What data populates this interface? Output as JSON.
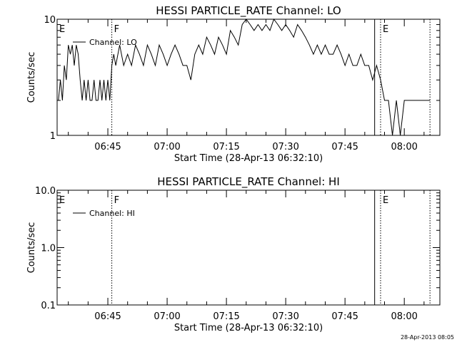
{
  "footer_timestamp": "28-Apr-2013 08:05",
  "chart_data": [
    {
      "type": "line",
      "title": "HESSI PARTICLE_RATE Channel: LO",
      "xlabel": "Start Time (28-Apr-13 06:32:10)",
      "ylabel": "Counts/sec",
      "yscale": "log",
      "ylim": [
        1,
        10
      ],
      "y_ticks": [
        {
          "v": 1,
          "label": "1"
        },
        {
          "v": 10,
          "label": "10"
        }
      ],
      "xlim": [
        "06:32:10",
        "08:09:00"
      ],
      "x_ticks": [
        "06:45",
        "07:00",
        "07:15",
        "07:30",
        "07:45",
        "08:00"
      ],
      "legend": "Channel: LO",
      "legend_position": "top-left",
      "event_markers": [
        {
          "time": "06:32:10",
          "label": "E",
          "style": "solid"
        },
        {
          "time": "06:46:00",
          "label": "F",
          "style": "dotted"
        },
        {
          "time": "07:52:30",
          "label": "",
          "style": "solid"
        },
        {
          "time": "07:54:00",
          "label": "E",
          "style": "dotted"
        },
        {
          "time": "08:06:30",
          "label": "",
          "style": "dotted"
        }
      ],
      "series": [
        {
          "name": "Channel: LO",
          "x": [
            "06:32:30",
            "06:33:00",
            "06:33:30",
            "06:34:00",
            "06:34:30",
            "06:35:00",
            "06:35:30",
            "06:36:00",
            "06:36:30",
            "06:37:00",
            "06:37:30",
            "06:38:00",
            "06:38:30",
            "06:39:00",
            "06:39:30",
            "06:40:00",
            "06:40:30",
            "06:41:00",
            "06:41:30",
            "06:42:00",
            "06:42:30",
            "06:43:00",
            "06:43:30",
            "06:44:00",
            "06:44:30",
            "06:45:00",
            "06:45:30",
            "06:46:00",
            "06:46:30",
            "06:47:00",
            "06:48:00",
            "06:49:00",
            "06:50:00",
            "06:51:00",
            "06:52:00",
            "06:53:00",
            "06:54:00",
            "06:55:00",
            "06:56:00",
            "06:57:00",
            "06:58:00",
            "06:59:00",
            "07:00:00",
            "07:01:00",
            "07:02:00",
            "07:03:00",
            "07:04:00",
            "07:05:00",
            "07:06:00",
            "07:07:00",
            "07:08:00",
            "07:09:00",
            "07:10:00",
            "07:11:00",
            "07:12:00",
            "07:13:00",
            "07:14:00",
            "07:15:00",
            "07:16:00",
            "07:17:00",
            "07:18:00",
            "07:19:00",
            "07:20:00",
            "07:21:00",
            "07:22:00",
            "07:23:00",
            "07:24:00",
            "07:25:00",
            "07:26:00",
            "07:27:00",
            "07:28:00",
            "07:29:00",
            "07:30:00",
            "07:31:00",
            "07:32:00",
            "07:33:00",
            "07:34:00",
            "07:35:00",
            "07:36:00",
            "07:37:00",
            "07:38:00",
            "07:39:00",
            "07:40:00",
            "07:41:00",
            "07:42:00",
            "07:43:00",
            "07:44:00",
            "07:45:00",
            "07:46:00",
            "07:47:00",
            "07:48:00",
            "07:49:00",
            "07:50:00",
            "07:51:00",
            "07:52:00",
            "07:53:00",
            "07:54:00",
            "07:55:00",
            "07:56:00",
            "07:57:00",
            "07:58:00",
            "07:59:00",
            "08:00:00",
            "08:01:00",
            "08:02:00",
            "08:03:00",
            "08:04:00",
            "08:05:00",
            "08:06:00",
            "08:06:30"
          ],
          "values": [
            2,
            3,
            2,
            4,
            3,
            6,
            5,
            6,
            4,
            6,
            5,
            3,
            2,
            3,
            2,
            3,
            2,
            2,
            3,
            2,
            2,
            3,
            2,
            3,
            2,
            3,
            2,
            4,
            5,
            4,
            6,
            4,
            5,
            4,
            6,
            5,
            4,
            6,
            5,
            4,
            6,
            5,
            4,
            5,
            6,
            5,
            4,
            4,
            3,
            5,
            6,
            5,
            7,
            6,
            5,
            7,
            6,
            5,
            8,
            7,
            6,
            9,
            10,
            9,
            8,
            9,
            8,
            9,
            8,
            10,
            9,
            8,
            9,
            8,
            7,
            9,
            8,
            7,
            6,
            5,
            6,
            5,
            6,
            5,
            5,
            6,
            5,
            4,
            5,
            4,
            4,
            5,
            4,
            4,
            3,
            4,
            3,
            2,
            2,
            1,
            2,
            1,
            2,
            2,
            2,
            2,
            2,
            2,
            2,
            2
          ]
        }
      ]
    },
    {
      "type": "line",
      "title": "HESSI PARTICLE_RATE Channel: HI",
      "xlabel": "Start Time (28-Apr-13 06:32:10)",
      "ylabel": "Counts/sec",
      "yscale": "log",
      "ylim": [
        0.1,
        10
      ],
      "y_ticks": [
        {
          "v": 0.1,
          "label": "0.1"
        },
        {
          "v": 1,
          "label": "1.0"
        },
        {
          "v": 10,
          "label": "10.0"
        }
      ],
      "xlim": [
        "06:32:10",
        "08:09:00"
      ],
      "x_ticks": [
        "06:45",
        "07:00",
        "07:15",
        "07:30",
        "07:45",
        "08:00"
      ],
      "legend": "Channel: HI",
      "legend_position": "top-left",
      "event_markers": [
        {
          "time": "06:32:10",
          "label": "E",
          "style": "solid"
        },
        {
          "time": "06:46:00",
          "label": "F",
          "style": "dotted"
        },
        {
          "time": "07:52:30",
          "label": "",
          "style": "solid"
        },
        {
          "time": "07:54:00",
          "label": "E",
          "style": "dotted"
        },
        {
          "time": "08:06:30",
          "label": "",
          "style": "dotted"
        }
      ],
      "series": [
        {
          "name": "Channel: HI",
          "x": [],
          "values": []
        }
      ]
    }
  ]
}
